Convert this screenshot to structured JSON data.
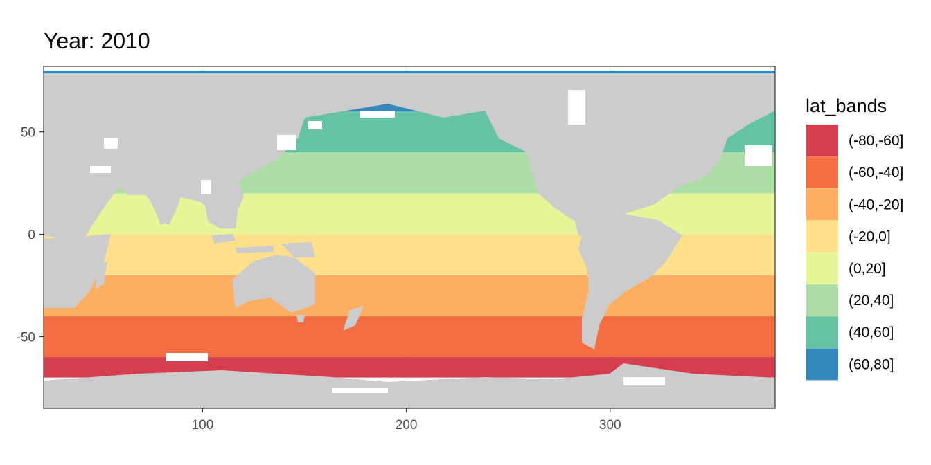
{
  "chart_data": {
    "type": "heatmap",
    "title": "Year: 2010",
    "xlabel": "",
    "ylabel": "",
    "xlim": [
      22,
      381
    ],
    "ylim": [
      -85,
      82
    ],
    "x_ticks": [
      100,
      200,
      300
    ],
    "y_ticks": [
      50,
      0,
      -50
    ],
    "x_tick_labels": [
      "100",
      "200",
      "300"
    ],
    "y_tick_labels": [
      "50",
      "0",
      "-50"
    ],
    "ocean_data_extent": [
      -70,
      80
    ],
    "land_color": "#cccccc",
    "no_data_color": "#ffffff",
    "grid": true,
    "legend": {
      "title": "lat_bands",
      "position": "right",
      "entries": [
        {
          "label": "(-80,-60]",
          "lower": -80,
          "upper": -60,
          "color": "#d53e4f"
        },
        {
          "label": "(-60,-40]",
          "lower": -60,
          "upper": -40,
          "color": "#f46d43"
        },
        {
          "label": "(-40,-20]",
          "lower": -40,
          "upper": -20,
          "color": "#fdae61"
        },
        {
          "label": "(-20,0]",
          "lower": -20,
          "upper": 0,
          "color": "#fee08b"
        },
        {
          "label": "(0,20]",
          "lower": 0,
          "upper": 20,
          "color": "#e6f598"
        },
        {
          "label": "(20,40]",
          "lower": 20,
          "upper": 40,
          "color": "#abdda4"
        },
        {
          "label": "(40,60]",
          "lower": 40,
          "upper": 60,
          "color": "#66c2a5"
        },
        {
          "label": "(60,80]",
          "lower": 60,
          "upper": 80,
          "color": "#3288bd"
        }
      ]
    }
  }
}
